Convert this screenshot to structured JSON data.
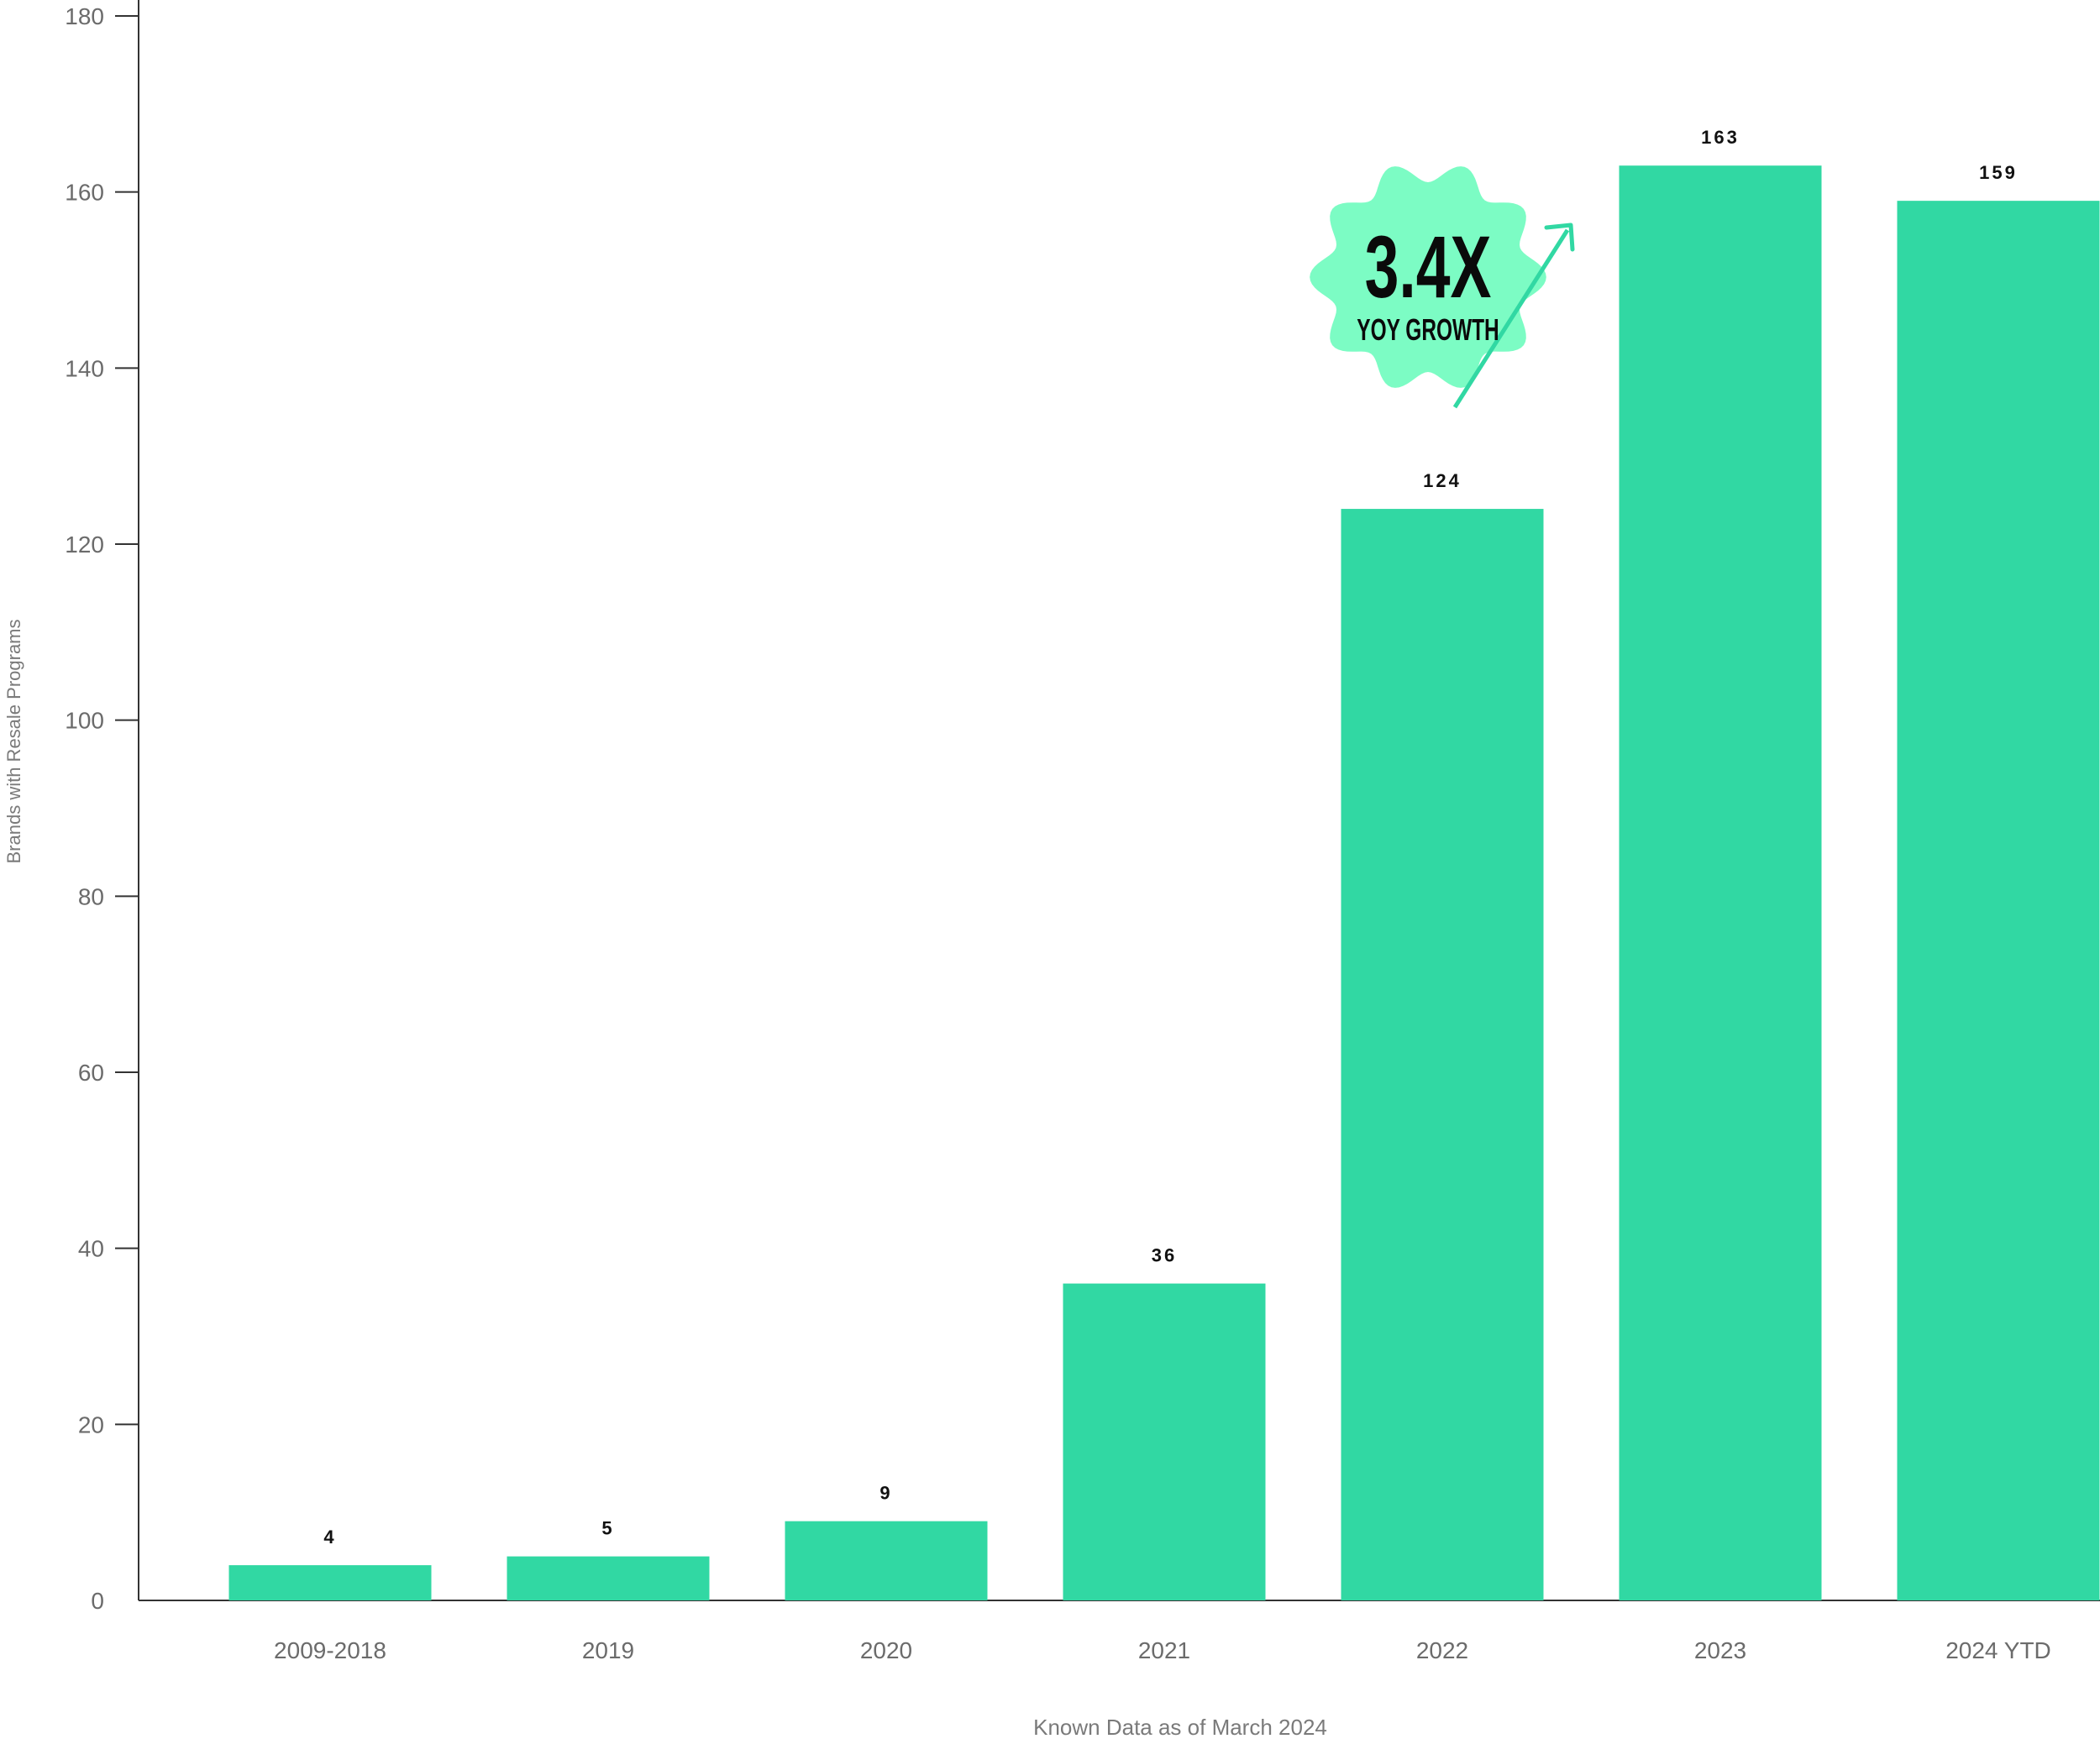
{
  "chart_data": {
    "type": "bar",
    "categories": [
      "2009-2018",
      "2019",
      "2020",
      "2021",
      "2022",
      "2023",
      "2024 YTD"
    ],
    "values": [
      4,
      5,
      9,
      36,
      124,
      163,
      159
    ],
    "data_labels": [
      "4",
      "5",
      "9",
      "36",
      "124",
      "163",
      "159"
    ],
    "title": "",
    "xlabel": "Known Data as of March 2024",
    "ylabel": "Brands with Resale Programs",
    "ylim": [
      0,
      180
    ],
    "yticks": [
      0,
      20,
      40,
      60,
      80,
      100,
      120,
      140,
      160,
      180
    ],
    "ytick_labels": [
      "0",
      "20",
      "40",
      "60",
      "80",
      "100",
      "120",
      "140",
      "160",
      "180"
    ],
    "grid": false,
    "legend": "none",
    "bar_color": "#31d8a3"
  },
  "annotation": {
    "headline": "3.4X",
    "subline": "YOY GROWTH",
    "badge_color": "#7cfcc4",
    "arrow_color": "#31d8a3",
    "text_color": "#0a0a0a"
  },
  "colors": {
    "axis": "#333333",
    "tick_text": "#6b6b6b",
    "label_text": "#111111"
  }
}
